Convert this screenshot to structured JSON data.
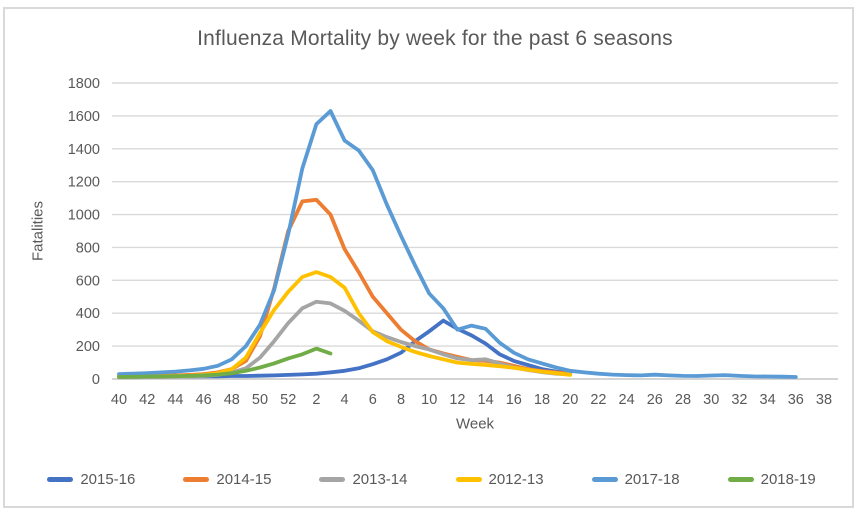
{
  "chart_data": {
    "type": "line",
    "title": "Influenza Mortality by week for the past 6 seasons",
    "xlabel": "Week",
    "ylabel": "Fatalities",
    "ylim": [
      0,
      1800
    ],
    "ytick_step": 200,
    "xtick_every": 2,
    "grid": true,
    "legend_position": "bottom",
    "grid_color": "#D9D9D9",
    "axis_text_color": "#595959",
    "categories": [
      40,
      41,
      42,
      43,
      44,
      45,
      46,
      47,
      48,
      49,
      50,
      51,
      52,
      1,
      2,
      3,
      4,
      5,
      6,
      7,
      8,
      9,
      10,
      11,
      12,
      13,
      14,
      15,
      16,
      17,
      18,
      19,
      20,
      21,
      22,
      23,
      24,
      25,
      26,
      27,
      28,
      29,
      30,
      31,
      32,
      33,
      34,
      35,
      36,
      37,
      38
    ],
    "series": [
      {
        "name": "2015-16",
        "color": "#4472C4",
        "values": [
          12,
          12,
          14,
          14,
          15,
          15,
          16,
          16,
          18,
          18,
          20,
          22,
          25,
          28,
          32,
          40,
          50,
          65,
          90,
          120,
          160,
          230,
          290,
          355,
          305,
          265,
          215,
          150,
          110,
          85,
          60,
          45,
          35,
          null,
          null,
          null,
          null,
          null,
          null,
          null,
          null,
          null,
          null,
          null,
          null,
          null,
          null,
          null,
          null,
          null,
          null
        ]
      },
      {
        "name": "2014-15",
        "color": "#ED7D31",
        "values": [
          18,
          18,
          20,
          20,
          22,
          25,
          30,
          40,
          60,
          110,
          260,
          550,
          900,
          1080,
          1090,
          1000,
          790,
          650,
          500,
          400,
          300,
          230,
          180,
          155,
          135,
          115,
          110,
          100,
          80,
          60,
          48,
          40,
          32,
          null,
          null,
          null,
          null,
          null,
          null,
          null,
          null,
          null,
          null,
          null,
          null,
          null,
          null,
          null,
          null,
          null,
          null
        ]
      },
      {
        "name": "2013-14",
        "color": "#A5A5A5",
        "values": [
          10,
          10,
          12,
          12,
          14,
          15,
          18,
          25,
          40,
          65,
          130,
          230,
          340,
          430,
          470,
          460,
          415,
          355,
          290,
          255,
          225,
          200,
          180,
          150,
          125,
          115,
          120,
          95,
          70,
          55,
          42,
          32,
          28,
          null,
          null,
          null,
          null,
          null,
          null,
          null,
          null,
          null,
          null,
          null,
          null,
          null,
          null,
          null,
          null,
          null,
          null
        ]
      },
      {
        "name": "2012-13",
        "color": "#FFC000",
        "values": [
          15,
          15,
          16,
          16,
          18,
          20,
          25,
          35,
          60,
          130,
          280,
          420,
          530,
          620,
          650,
          620,
          555,
          400,
          285,
          230,
          195,
          165,
          140,
          120,
          100,
          92,
          85,
          78,
          68,
          56,
          45,
          35,
          25,
          null,
          null,
          null,
          null,
          null,
          null,
          null,
          null,
          null,
          null,
          null,
          null,
          null,
          null,
          null,
          null,
          null,
          null
        ]
      },
      {
        "name": "2017-18",
        "color": "#5B9BD5",
        "values": [
          30,
          33,
          36,
          40,
          45,
          52,
          62,
          80,
          120,
          200,
          330,
          540,
          880,
          1280,
          1550,
          1630,
          1450,
          1390,
          1270,
          1060,
          870,
          690,
          520,
          430,
          300,
          325,
          305,
          220,
          160,
          120,
          95,
          70,
          50,
          40,
          32,
          27,
          24,
          22,
          26,
          22,
          19,
          18,
          21,
          24,
          19,
          16,
          15,
          14,
          12,
          null,
          null
        ]
      },
      {
        "name": "2018-19",
        "color": "#70AD47",
        "values": [
          12,
          13,
          15,
          15,
          17,
          19,
          22,
          27,
          35,
          50,
          70,
          95,
          125,
          150,
          185,
          155,
          null,
          null,
          null,
          null,
          null,
          null,
          null,
          null,
          null,
          null,
          null,
          null,
          null,
          null,
          null,
          null,
          null,
          null,
          null,
          null,
          null,
          null,
          null,
          null,
          null,
          null,
          null,
          null,
          null,
          null,
          null,
          null,
          null,
          null,
          null
        ]
      }
    ]
  }
}
